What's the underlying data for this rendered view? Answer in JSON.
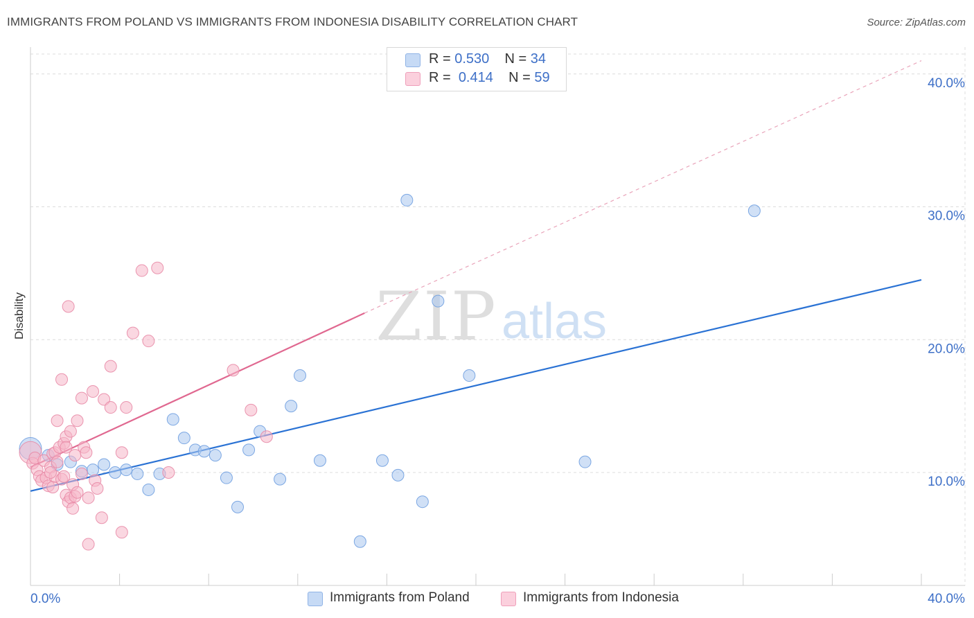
{
  "title": "IMMIGRANTS FROM POLAND VS IMMIGRANTS FROM INDONESIA DISABILITY CORRELATION CHART",
  "source": "Source: ZipAtlas.com",
  "watermark": {
    "zip": "ZIP",
    "atlas": "atlas"
  },
  "legend_stats": [
    {
      "r_label": "R =",
      "r_value": "0.530",
      "n_label": "N =",
      "n_value": "34",
      "color": "#a9c6ef"
    },
    {
      "r_label": "R =",
      "r_value": "0.414",
      "n_label": "N =",
      "n_value": "59",
      "color": "#f6b6c9"
    }
  ],
  "legend_series": [
    {
      "label": "Immigrants from Poland",
      "color": "#a9c6ef"
    },
    {
      "label": "Immigrants from Indonesia",
      "color": "#f6b6c9"
    }
  ],
  "chart_data": {
    "type": "scatter",
    "title": "IMMIGRANTS FROM POLAND VS IMMIGRANTS FROM INDONESIA DISABILITY CORRELATION CHART",
    "xlabel": "",
    "ylabel": "Disability",
    "xlim": [
      0,
      40
    ],
    "ylim": [
      1.5,
      41.5
    ],
    "x_tick_labels": [
      "0.0%",
      "40.0%"
    ],
    "y_ticks": [
      10,
      20,
      30,
      40
    ],
    "y_tick_labels": [
      "10.0%",
      "20.0%",
      "30.0%",
      "40.0%"
    ],
    "grid": true,
    "series": [
      {
        "name": "Immigrants from Poland",
        "color": "#6f9fe0",
        "fill": "#a9c6ef",
        "trend": {
          "x0": 0,
          "y0": 8.6,
          "x1": 40,
          "y1": 24.5,
          "style": "solid",
          "color": "#2a72d4"
        },
        "points": [
          {
            "x": 0.0,
            "y": 11.8,
            "big": true
          },
          {
            "x": 0.8,
            "y": 11.3
          },
          {
            "x": 1.2,
            "y": 10.6
          },
          {
            "x": 1.8,
            "y": 10.8
          },
          {
            "x": 2.3,
            "y": 10.1
          },
          {
            "x": 2.8,
            "y": 10.2
          },
          {
            "x": 3.3,
            "y": 10.6
          },
          {
            "x": 3.8,
            "y": 10.0
          },
          {
            "x": 4.3,
            "y": 10.2
          },
          {
            "x": 4.8,
            "y": 9.9
          },
          {
            "x": 5.3,
            "y": 8.7
          },
          {
            "x": 5.8,
            "y": 9.9
          },
          {
            "x": 6.4,
            "y": 14.0
          },
          {
            "x": 6.9,
            "y": 12.6
          },
          {
            "x": 7.4,
            "y": 11.7
          },
          {
            "x": 7.8,
            "y": 11.6
          },
          {
            "x": 8.3,
            "y": 11.3
          },
          {
            "x": 8.8,
            "y": 9.6
          },
          {
            "x": 9.3,
            "y": 7.4
          },
          {
            "x": 9.8,
            "y": 11.7
          },
          {
            "x": 10.3,
            "y": 13.1
          },
          {
            "x": 11.2,
            "y": 9.5
          },
          {
            "x": 11.7,
            "y": 15.0
          },
          {
            "x": 12.1,
            "y": 17.3
          },
          {
            "x": 13.0,
            "y": 10.9
          },
          {
            "x": 14.8,
            "y": 4.8
          },
          {
            "x": 15.8,
            "y": 10.9
          },
          {
            "x": 16.5,
            "y": 9.8
          },
          {
            "x": 16.9,
            "y": 30.5
          },
          {
            "x": 17.6,
            "y": 7.8
          },
          {
            "x": 18.3,
            "y": 22.9
          },
          {
            "x": 19.7,
            "y": 17.3
          },
          {
            "x": 24.9,
            "y": 10.8
          },
          {
            "x": 32.5,
            "y": 29.7
          }
        ]
      },
      {
        "name": "Immigrants from Indonesia",
        "color": "#e88aa6",
        "fill": "#f6b6c9",
        "trend": {
          "x0": 0,
          "y0": 10.4,
          "x1": 15.0,
          "y1": 22.0,
          "style": "solid",
          "color": "#e06890",
          "ext_x1": 40,
          "ext_y1": 41.0
        },
        "points": [
          {
            "x": 0.0,
            "y": 11.5,
            "big": true
          },
          {
            "x": 0.1,
            "y": 10.7
          },
          {
            "x": 0.2,
            "y": 11.1
          },
          {
            "x": 0.3,
            "y": 10.2
          },
          {
            "x": 0.4,
            "y": 9.7
          },
          {
            "x": 0.5,
            "y": 9.4
          },
          {
            "x": 0.6,
            "y": 10.9
          },
          {
            "x": 0.7,
            "y": 9.6
          },
          {
            "x": 0.8,
            "y": 9.0
          },
          {
            "x": 0.9,
            "y": 10.4
          },
          {
            "x": 1.0,
            "y": 11.4
          },
          {
            "x": 1.0,
            "y": 8.9
          },
          {
            "x": 1.1,
            "y": 11.5
          },
          {
            "x": 1.1,
            "y": 9.7
          },
          {
            "x": 1.2,
            "y": 10.8
          },
          {
            "x": 1.2,
            "y": 13.9
          },
          {
            "x": 1.3,
            "y": 11.9
          },
          {
            "x": 1.4,
            "y": 9.5
          },
          {
            "x": 1.4,
            "y": 17.0
          },
          {
            "x": 1.5,
            "y": 9.7
          },
          {
            "x": 1.5,
            "y": 12.2
          },
          {
            "x": 1.6,
            "y": 12.7
          },
          {
            "x": 1.6,
            "y": 8.3
          },
          {
            "x": 1.7,
            "y": 22.5
          },
          {
            "x": 1.7,
            "y": 7.8
          },
          {
            "x": 1.8,
            "y": 13.1
          },
          {
            "x": 1.8,
            "y": 8.1
          },
          {
            "x": 1.9,
            "y": 7.3
          },
          {
            "x": 1.9,
            "y": 9.1
          },
          {
            "x": 2.0,
            "y": 11.3
          },
          {
            "x": 2.0,
            "y": 8.2
          },
          {
            "x": 2.1,
            "y": 13.9
          },
          {
            "x": 2.1,
            "y": 8.5
          },
          {
            "x": 2.3,
            "y": 15.6
          },
          {
            "x": 2.3,
            "y": 9.9
          },
          {
            "x": 2.4,
            "y": 11.9
          },
          {
            "x": 2.5,
            "y": 11.5
          },
          {
            "x": 2.6,
            "y": 8.1
          },
          {
            "x": 2.8,
            "y": 16.1
          },
          {
            "x": 2.9,
            "y": 9.4
          },
          {
            "x": 3.0,
            "y": 8.8
          },
          {
            "x": 3.3,
            "y": 15.5
          },
          {
            "x": 3.6,
            "y": 14.9
          },
          {
            "x": 4.1,
            "y": 11.5
          },
          {
            "x": 4.3,
            "y": 14.9
          },
          {
            "x": 4.6,
            "y": 20.5
          },
          {
            "x": 5.0,
            "y": 25.2
          },
          {
            "x": 5.3,
            "y": 19.9
          },
          {
            "x": 5.7,
            "y": 25.4
          },
          {
            "x": 6.2,
            "y": 10.0
          },
          {
            "x": 3.2,
            "y": 6.6
          },
          {
            "x": 3.6,
            "y": 18.0
          },
          {
            "x": 4.1,
            "y": 5.5
          },
          {
            "x": 2.6,
            "y": 4.6
          },
          {
            "x": 9.1,
            "y": 17.7
          },
          {
            "x": 9.9,
            "y": 14.7
          },
          {
            "x": 10.6,
            "y": 12.7
          },
          {
            "x": 1.6,
            "y": 11.9
          },
          {
            "x": 0.9,
            "y": 10.0
          }
        ]
      }
    ]
  }
}
